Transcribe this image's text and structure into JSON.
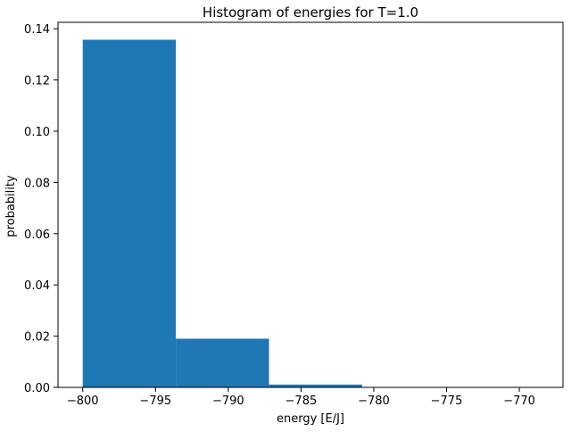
{
  "chart_data": {
    "type": "bar",
    "title": "Histogram of energies for T=1.0",
    "xlabel": "energy [E/J]",
    "ylabel": "probability",
    "xlim": [
      -801.7,
      -767.0
    ],
    "ylim": [
      0,
      0.1425
    ],
    "bar_color": "#1f77b4",
    "grid": false,
    "bins": [
      {
        "x0": -800.0,
        "x1": -793.6,
        "value": 0.1357
      },
      {
        "x0": -793.6,
        "x1": -787.2,
        "value": 0.019
      },
      {
        "x0": -787.2,
        "x1": -780.8,
        "value": 0.0011
      }
    ],
    "xticks": [
      -800,
      -795,
      -790,
      -785,
      -780,
      -775,
      -770
    ],
    "xtick_labels": [
      "−800",
      "−795",
      "−790",
      "−785",
      "−780",
      "−775",
      "−770"
    ],
    "yticks": [
      0.0,
      0.02,
      0.04,
      0.06,
      0.08,
      0.1,
      0.12,
      0.14
    ],
    "ytick_labels": [
      "0.00",
      "0.02",
      "0.04",
      "0.06",
      "0.08",
      "0.10",
      "0.12",
      "0.14"
    ]
  }
}
